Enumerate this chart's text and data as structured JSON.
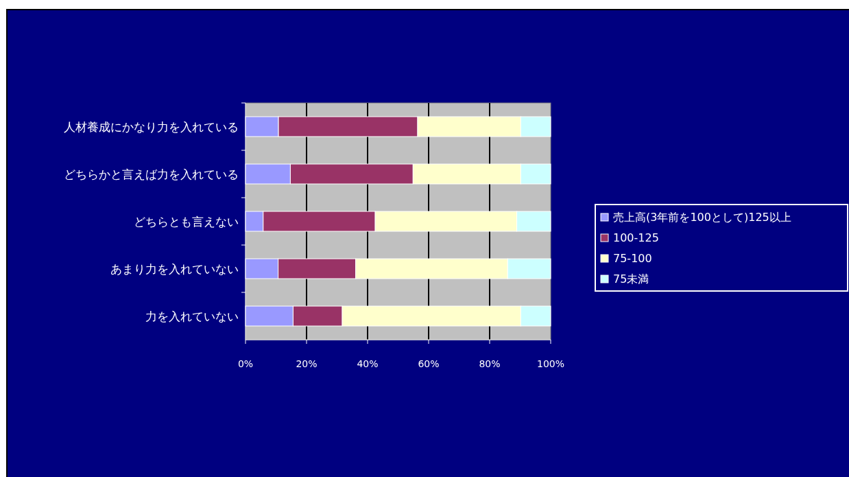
{
  "chart_data": {
    "type": "bar",
    "orientation": "horizontal",
    "stacked": true,
    "categories": [
      "人材養成にかなり力を入れている",
      "どちらかと言えば力を入れている",
      "どちらとも言えない",
      "あまり力を入れていない",
      "力を入れていない"
    ],
    "series": [
      {
        "name": "売上高(3年前を100として)125以上",
        "color": "#9999ff",
        "values": [
          10.8,
          14.7,
          5.8,
          10.7,
          15.6
        ]
      },
      {
        "name": "100-125",
        "color": "#993366",
        "values": [
          45.6,
          40.2,
          36.7,
          25.4,
          16.1
        ]
      },
      {
        "name": "75-100",
        "color": "#ffffcc",
        "values": [
          33.8,
          35.3,
          46.4,
          49.8,
          58.5
        ]
      },
      {
        "name": "75未満",
        "color": "#ccffff",
        "values": [
          9.8,
          9.8,
          11.1,
          14.1,
          9.8
        ]
      }
    ],
    "xlim": [
      0,
      100
    ],
    "xticks": [
      {
        "value": 0,
        "label": "0%"
      },
      {
        "value": 20,
        "label": "20%"
      },
      {
        "value": 40,
        "label": "40%"
      },
      {
        "value": 60,
        "label": "60%"
      },
      {
        "value": 80,
        "label": "80%"
      },
      {
        "value": 100,
        "label": "100%"
      }
    ],
    "grid": "x",
    "legend": "right"
  }
}
